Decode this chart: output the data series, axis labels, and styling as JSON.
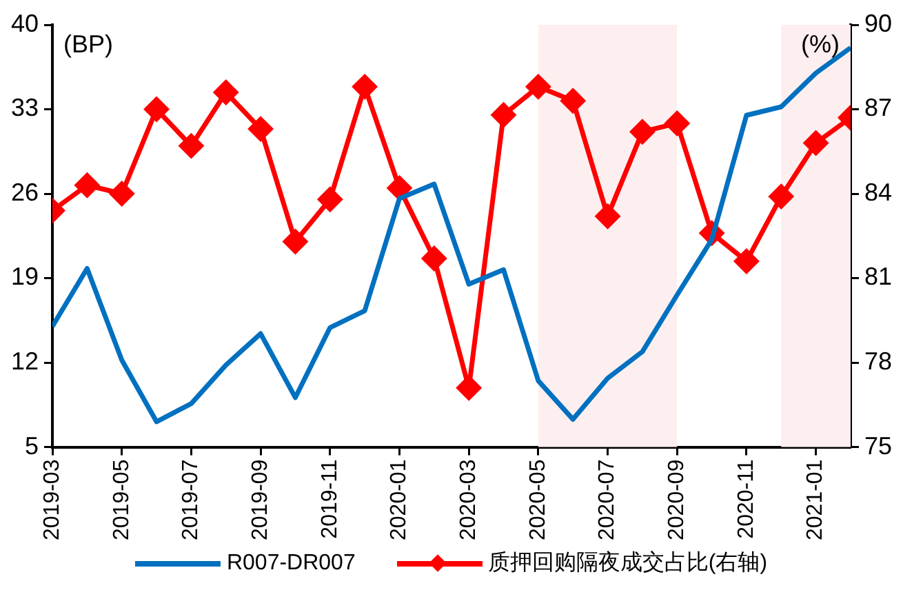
{
  "chart_data": {
    "type": "line",
    "ylabel": "(BP)",
    "y2label": "(%)",
    "x": [
      "2019-03",
      "2019-04",
      "2019-05",
      "2019-06",
      "2019-07",
      "2019-08",
      "2019-09",
      "2019-10",
      "2019-11",
      "2019-12",
      "2020-01",
      "2020-02",
      "2020-03",
      "2020-04",
      "2020-05",
      "2020-06",
      "2020-07",
      "2020-08",
      "2020-09",
      "2020-10",
      "2020-11",
      "2020-12",
      "2021-01",
      "2021-02"
    ],
    "xlim": [
      "2019-03",
      "2021-02"
    ],
    "xticks": [
      "2019-03",
      "2019-05",
      "2019-07",
      "2019-09",
      "2019-11",
      "2020-01",
      "2020-03",
      "2020-05",
      "2020-07",
      "2020-09",
      "2020-11",
      "2021-01"
    ],
    "ylim": [
      5,
      40
    ],
    "yticks": [
      5,
      12,
      19,
      26,
      33,
      40
    ],
    "y2lim": [
      75,
      90
    ],
    "y2ticks": [
      75,
      78,
      81,
      84,
      87,
      90
    ],
    "series": [
      {
        "name": "R007-DR007",
        "color": "#0070c0",
        "marker": "none",
        "values": [
          15.0,
          19.8,
          12.2,
          7.1,
          8.6,
          11.8,
          14.4,
          9.1,
          14.9,
          16.3,
          25.6,
          26.8,
          18.5,
          19.7,
          10.5,
          7.3,
          10.7,
          12.9,
          17.6,
          22.2,
          32.5,
          33.2,
          36.0,
          38.1
        ]
      },
      {
        "name": "质押回购隔夜成交占比(右轴)",
        "color": "#ff0000",
        "marker": "diamond",
        "axis": "y2",
        "values": [
          83.4,
          84.3,
          84.0,
          87.0,
          85.7,
          87.6,
          86.3,
          82.3,
          83.8,
          87.8,
          84.2,
          81.7,
          77.1,
          86.8,
          87.8,
          87.3,
          83.2,
          86.2,
          86.5,
          82.6,
          81.6,
          83.9,
          85.8,
          86.7
        ]
      }
    ],
    "bands": [
      {
        "axis": "x",
        "from": "2020-05",
        "to": "2020-09",
        "color": "#fdeff0"
      },
      {
        "axis": "x",
        "from": "2020-12",
        "to": "2021-02",
        "color": "#fdeff0"
      }
    ],
    "grid": false,
    "legend": "bottom"
  }
}
